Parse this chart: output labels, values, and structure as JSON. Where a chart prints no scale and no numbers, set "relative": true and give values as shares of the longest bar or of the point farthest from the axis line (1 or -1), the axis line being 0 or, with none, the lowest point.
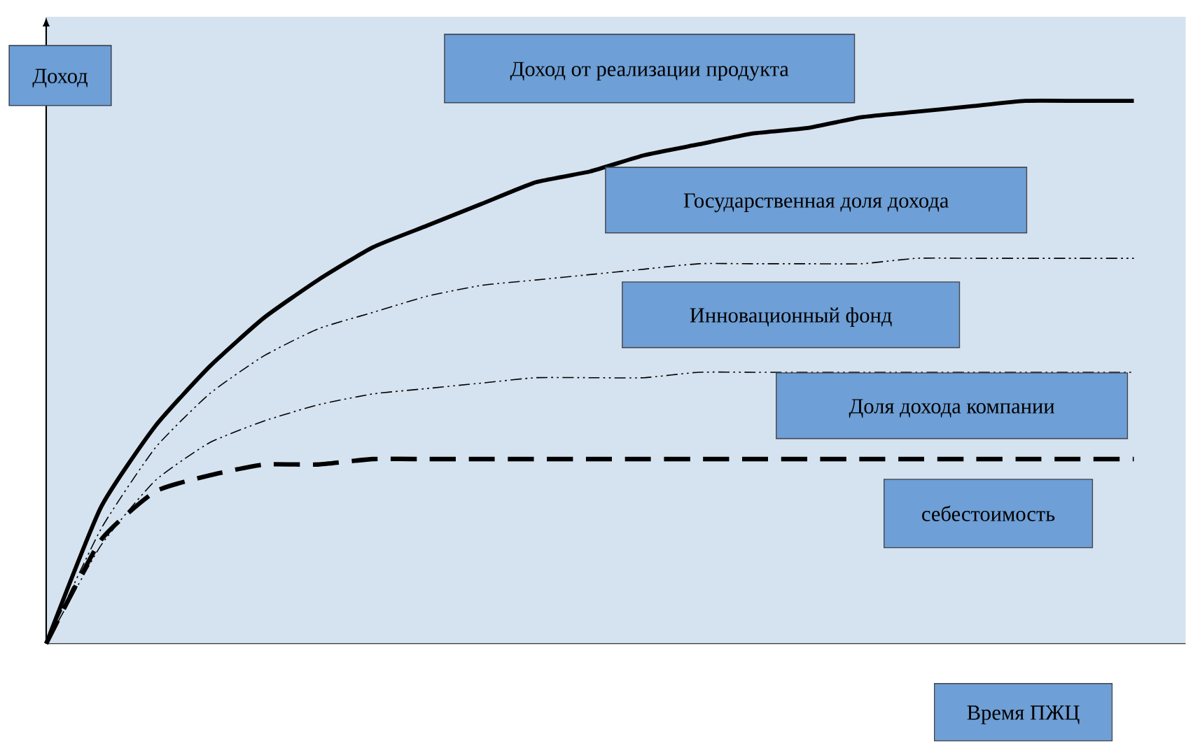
{
  "chart_data": {
    "type": "line",
    "relative": true,
    "xlabel": "Время ПЖЦ",
    "ylabel": "Доход",
    "categories": [
      null,
      null,
      null,
      null,
      null,
      null,
      null,
      null,
      null,
      null,
      null,
      null,
      null,
      null,
      null,
      null,
      null,
      null,
      null,
      null,
      null
    ],
    "series": [
      {
        "color": "#000000",
        "line_style": "solid",
        "values": [
          0,
          0.25,
          0.4,
          0.51,
          0.6,
          0.67,
          0.73,
          0.77,
          0.81,
          0.85,
          0.87,
          0.9,
          0.92,
          0.94,
          0.95,
          0.97,
          0.98,
          0.99,
          1.0,
          1.0,
          1.0
        ]
      },
      {
        "color": "#000000",
        "line_style": "dashdot",
        "values": [
          0,
          0.21,
          0.36,
          0.46,
          0.53,
          0.58,
          0.61,
          0.64,
          0.66,
          0.67,
          0.68,
          0.69,
          0.7,
          0.7,
          0.7,
          0.7,
          0.71,
          0.71,
          0.71,
          0.71,
          0.71
        ]
      },
      {
        "color": "#000000",
        "line_style": "dashdot",
        "values": [
          0,
          0.18,
          0.3,
          0.37,
          0.41,
          0.44,
          0.46,
          0.47,
          0.48,
          0.49,
          0.49,
          0.49,
          0.5,
          0.5,
          0.5,
          0.5,
          0.5,
          0.5,
          0.5,
          0.5,
          0.5
        ]
      },
      {
        "color": "#000000",
        "line_style": "dashed",
        "values": [
          0,
          0.19,
          0.28,
          0.31,
          0.33,
          0.33,
          0.34,
          0.34,
          0.34,
          0.34,
          0.34,
          0.34,
          0.34,
          0.34,
          0.34,
          0.34,
          0.34,
          0.34,
          0.34,
          0.34,
          0.34
        ]
      }
    ],
    "annotations": [
      "Доход от реализации продукта",
      "Государственная доля дохода",
      "Инновационный фонд",
      "Доля дохода компании",
      "себестоимость"
    ]
  }
}
